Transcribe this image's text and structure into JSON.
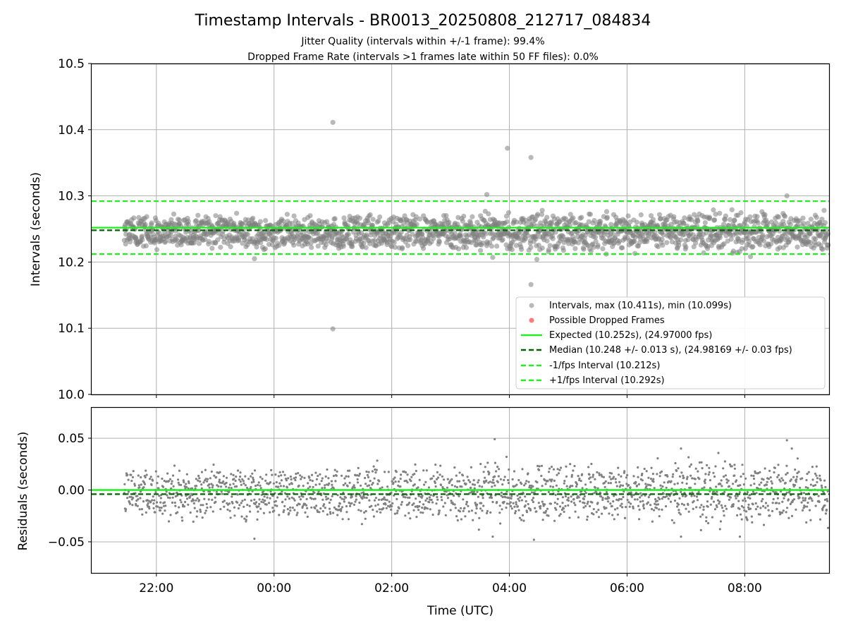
{
  "colors": {
    "points": "#808080",
    "dropped": "#ff4040",
    "expected": "#22ee22",
    "median": "#006400",
    "interval": "#22ee22",
    "grid": "#b0b0b0"
  },
  "chart_data": [
    {
      "type": "scatter",
      "title": "Timestamp Intervals - BR0013_20250808_212717_084834",
      "subtitle_lines": [
        "Jitter Quality (intervals within +/-1 frame): 99.4%",
        "Dropped Frame Rate (intervals >1 frames late within 50 FF files): 0.0%"
      ],
      "ylabel": "Intervals (seconds)",
      "xlabel": "",
      "xlim": [
        "2025-08-08 20:54",
        "2025-08-09 09:26"
      ],
      "ylim": [
        10.0,
        10.5
      ],
      "yticks": [
        "10.0",
        "10.1",
        "10.2",
        "10.3",
        "10.4",
        "10.5"
      ],
      "ytick_values": [
        10.0,
        10.1,
        10.2,
        10.3,
        10.4,
        10.5
      ],
      "xtick_values": [
        "2025-08-08 22:00",
        "2025-08-09 00:00",
        "2025-08-09 02:00",
        "2025-08-09 04:00",
        "2025-08-09 06:00",
        "2025-08-09 08:00"
      ],
      "grid": true,
      "legend_location": "lower-right",
      "data_start": "2025-08-08 21:27",
      "data_end": "2025-08-09 09:26",
      "bands": [
        10.2552,
        10.2352
      ],
      "jitter": 0.006,
      "series": [
        {
          "name": "Intervals, max (10.411s), min (10.099s)",
          "kind": "points"
        },
        {
          "name": "Possible Dropped Frames",
          "kind": "dropped",
          "values": []
        },
        {
          "name": "Expected (10.252s), (24.97000 fps)",
          "kind": "hline",
          "y": 10.252,
          "style": "solid"
        },
        {
          "name": "Median (10.248 +/- 0.013 s), (24.98169 +/- 0.03 fps)",
          "kind": "hline",
          "y": 10.248,
          "style": "dashed-dark"
        },
        {
          "name": "-1/fps Interval (10.212s)",
          "kind": "hline",
          "y": 10.212,
          "style": "dashed"
        },
        {
          "name": "+1/fps Interval (10.292s)",
          "kind": "hline",
          "y": 10.292,
          "style": "dashed"
        }
      ],
      "outliers": [
        {
          "x": "2025-08-09 01:00",
          "y": 10.411
        },
        {
          "x": "2025-08-09 01:00",
          "y": 10.099
        },
        {
          "x": "2025-08-09 03:58",
          "y": 10.372
        },
        {
          "x": "2025-08-09 04:22",
          "y": 10.358
        },
        {
          "x": "2025-08-09 04:22",
          "y": 10.166
        },
        {
          "x": "2025-08-09 03:37",
          "y": 10.302
        },
        {
          "x": "2025-08-09 08:43",
          "y": 10.3
        },
        {
          "x": "2025-08-08 23:40",
          "y": 10.205
        },
        {
          "x": "2025-08-09 04:28",
          "y": 10.204
        },
        {
          "x": "2025-08-09 03:43",
          "y": 10.207
        }
      ]
    },
    {
      "type": "scatter",
      "ylabel": "Residuals (seconds)",
      "xlabel": "Time (UTC)",
      "xlim": [
        "2025-08-08 20:54",
        "2025-08-09 09:26"
      ],
      "ylim": [
        -0.08,
        0.08
      ],
      "yticks": [
        "−0.05",
        "0.00",
        "0.05"
      ],
      "ytick_values": [
        -0.05,
        0.0,
        0.05
      ],
      "xticks": [
        "22:00",
        "00:00",
        "02:00",
        "04:00",
        "06:00",
        "08:00"
      ],
      "xtick_values": [
        "2025-08-08 22:00",
        "2025-08-09 00:00",
        "2025-08-09 02:00",
        "2025-08-09 04:00",
        "2025-08-09 06:00",
        "2025-08-09 08:00"
      ],
      "grid": true,
      "data_start": "2025-08-08 21:27",
      "data_end": "2025-08-09 09:26",
      "bands": [
        0.0072,
        -0.0128
      ],
      "jitter": 0.006,
      "expected_line": 0.0,
      "median_line": -0.004,
      "outliers": [
        {
          "x": "2025-08-09 03:45",
          "y": 0.049
        },
        {
          "x": "2025-08-09 08:43",
          "y": 0.048
        },
        {
          "x": "2025-08-09 08:48",
          "y": 0.04
        },
        {
          "x": "2025-08-09 06:55",
          "y": 0.04
        },
        {
          "x": "2025-08-08 23:40",
          "y": -0.047
        },
        {
          "x": "2025-08-09 04:25",
          "y": -0.048
        },
        {
          "x": "2025-08-09 03:43",
          "y": -0.045
        },
        {
          "x": "2025-08-09 07:55",
          "y": -0.045
        },
        {
          "x": "2025-08-09 06:55",
          "y": -0.045
        }
      ]
    }
  ]
}
